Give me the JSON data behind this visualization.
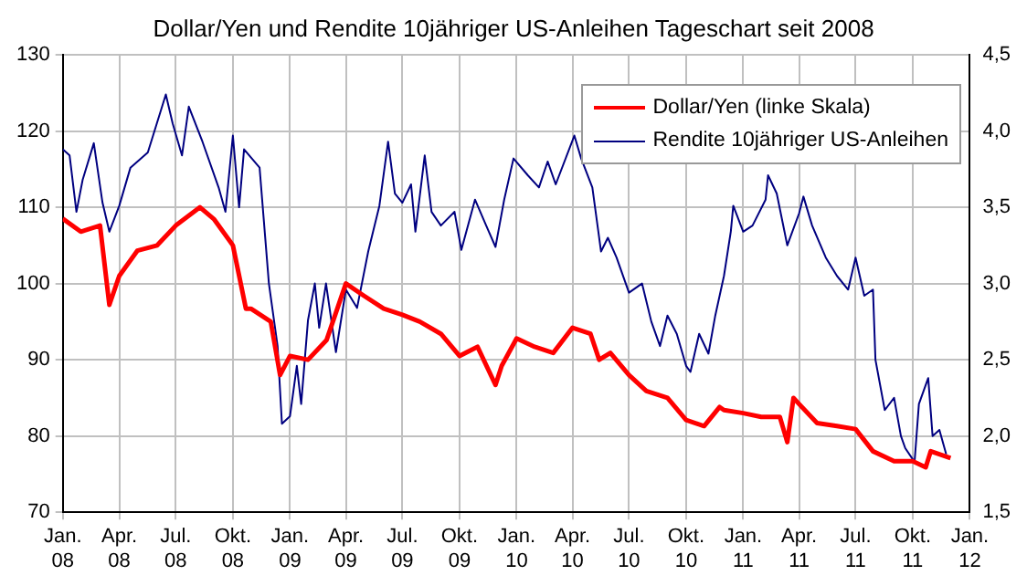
{
  "chart_data": {
    "type": "line",
    "title": "Dollar/Yen und Rendite 10jähriger US-Anleihen Tageschart seit 2008",
    "xlim": [
      "2008-01-01",
      "2012-01-01"
    ],
    "xticks": [
      {
        "value": "2008-01-01",
        "label": "Jan. 08"
      },
      {
        "value": "2008-04-01",
        "label": "Apr. 08"
      },
      {
        "value": "2008-07-01",
        "label": "Jul. 08"
      },
      {
        "value": "2008-10-01",
        "label": "Okt. 08"
      },
      {
        "value": "2009-01-01",
        "label": "Jan. 09"
      },
      {
        "value": "2009-04-01",
        "label": "Apr. 09"
      },
      {
        "value": "2009-07-01",
        "label": "Jul. 09"
      },
      {
        "value": "2009-10-01",
        "label": "Okt. 09"
      },
      {
        "value": "2010-01-01",
        "label": "Jan. 10"
      },
      {
        "value": "2010-04-01",
        "label": "Apr. 10"
      },
      {
        "value": "2010-07-01",
        "label": "Jul. 10"
      },
      {
        "value": "2010-10-01",
        "label": "Okt. 10"
      },
      {
        "value": "2011-01-01",
        "label": "Jan. 11"
      },
      {
        "value": "2011-04-01",
        "label": "Apr. 11"
      },
      {
        "value": "2011-07-01",
        "label": "Jul. 11"
      },
      {
        "value": "2011-10-01",
        "label": "Okt. 11"
      },
      {
        "value": "2012-01-01",
        "label": "Jan. 12"
      }
    ],
    "ylim": [
      70,
      130
    ],
    "yticks": [
      70,
      80,
      90,
      100,
      110,
      120,
      130
    ],
    "y2lim": [
      1.5,
      4.5
    ],
    "y2ticks": [
      {
        "value": 1.5,
        "label": "1,5"
      },
      {
        "value": 2,
        "label": "2,0"
      },
      {
        "value": 2.5,
        "label": "2,5"
      },
      {
        "value": 3,
        "label": "3,0"
      },
      {
        "value": 3.5,
        "label": "3,5"
      },
      {
        "value": 4,
        "label": "4,0"
      },
      {
        "value": 4.5,
        "label": "4,5"
      }
    ],
    "grid": true,
    "legend": "top right",
    "series": [
      {
        "name": "Dollar/Yen (linke Skala)",
        "color": "#ff0000",
        "x": [
          "2008-01-01",
          "2008-01-30",
          "2008-03-01",
          "2008-03-16",
          "2008-04-01",
          "2008-04-30",
          "2008-06-01",
          "2008-07-01",
          "2008-08-09",
          "2008-09-01",
          "2008-10-01",
          "2008-10-22",
          "2008-10-30",
          "2008-12-01",
          "2008-12-16",
          "2009-01-01",
          "2009-01-30",
          "2009-03-01",
          "2009-04-01",
          "2009-04-30",
          "2009-06-01",
          "2009-07-01",
          "2009-07-29",
          "2009-09-01",
          "2009-10-01",
          "2009-10-30",
          "2009-11-28",
          "2009-12-08",
          "2010-01-01",
          "2010-01-30",
          "2010-03-01",
          "2010-04-01",
          "2010-04-30",
          "2010-05-14",
          "2010-06-01",
          "2010-07-01",
          "2010-07-29",
          "2010-09-01",
          "2010-10-01",
          "2010-10-30",
          "2010-11-24",
          "2010-12-01",
          "2011-01-01",
          "2011-01-30",
          "2011-03-01",
          "2011-03-13",
          "2011-03-23",
          "2011-04-01",
          "2011-04-30",
          "2011-06-01",
          "2011-07-01",
          "2011-07-29",
          "2011-09-01",
          "2011-10-01",
          "2011-10-22",
          "2011-10-30",
          "2011-12-01"
        ],
        "values": [
          108.5,
          106.8,
          107.6,
          97.2,
          101,
          104.3,
          105,
          107.6,
          110,
          108.4,
          105,
          96.7,
          96.7,
          95,
          88,
          90.5,
          90,
          92.6,
          100,
          98.4,
          96.7,
          95.9,
          95,
          93.4,
          90.5,
          91.7,
          86.7,
          89.2,
          92.8,
          91.7,
          90.9,
          94.2,
          93.4,
          90,
          90.9,
          88,
          85.9,
          85,
          82.1,
          81.3,
          83.8,
          83.4,
          83,
          82.5,
          82.5,
          79.2,
          85,
          84.2,
          81.7,
          81.3,
          80.9,
          78,
          76.7,
          76.7,
          75.9,
          78,
          77.1
        ]
      },
      {
        "name": "Rendite 10jähriger US-Anleihen",
        "color": "#000080",
        "axis": "y2",
        "x": [
          "2008-01-01",
          "2008-01-12",
          "2008-01-23",
          "2008-02-02",
          "2008-02-20",
          "2008-03-05",
          "2008-03-16",
          "2008-04-01",
          "2008-04-19",
          "2008-05-17",
          "2008-06-15",
          "2008-06-26",
          "2008-07-11",
          "2008-07-22",
          "2008-08-13",
          "2008-09-08",
          "2008-09-19",
          "2008-10-01",
          "2008-10-11",
          "2008-10-19",
          "2008-11-13",
          "2008-11-28",
          "2008-12-12",
          "2008-12-19",
          "2009-01-01",
          "2009-01-12",
          "2009-01-19",
          "2009-01-30",
          "2009-02-10",
          "2009-02-17",
          "2009-02-28",
          "2009-03-16",
          "2009-04-01",
          "2009-04-19",
          "2009-05-07",
          "2009-05-25",
          "2009-06-08",
          "2009-06-19",
          "2009-07-01",
          "2009-07-15",
          "2009-07-22",
          "2009-08-06",
          "2009-08-17",
          "2009-09-01",
          "2009-09-23",
          "2009-10-04",
          "2009-10-26",
          "2009-11-13",
          "2009-11-28",
          "2009-12-12",
          "2009-12-27",
          "2010-01-19",
          "2010-02-06",
          "2010-02-20",
          "2010-03-05",
          "2010-04-04",
          "2010-04-15",
          "2010-05-03",
          "2010-05-17",
          "2010-05-28",
          "2010-06-11",
          "2010-07-01",
          "2010-07-22",
          "2010-08-06",
          "2010-08-20",
          "2010-09-01",
          "2010-09-16",
          "2010-10-01",
          "2010-10-08",
          "2010-10-22",
          "2010-11-06",
          "2010-11-17",
          "2010-12-01",
          "2010-12-12",
          "2010-12-16",
          "2011-01-01",
          "2011-01-16",
          "2011-02-06",
          "2011-02-10",
          "2011-02-24",
          "2011-03-13",
          "2011-04-01",
          "2011-04-08",
          "2011-04-22",
          "2011-05-14",
          "2011-06-01",
          "2011-06-19",
          "2011-07-01",
          "2011-07-15",
          "2011-07-29",
          "2011-08-02",
          "2011-08-17",
          "2011-09-01",
          "2011-09-12",
          "2011-09-19",
          "2011-10-04",
          "2011-10-11",
          "2011-10-26",
          "2011-11-02",
          "2011-11-13",
          "2011-11-24"
        ],
        "values": [
          3.88,
          3.84,
          3.47,
          3.68,
          3.92,
          3.53,
          3.34,
          3.51,
          3.76,
          3.86,
          4.24,
          4.05,
          3.84,
          4.16,
          3.93,
          3.63,
          3.47,
          3.97,
          3.5,
          3.88,
          3.76,
          3,
          2.59,
          2.08,
          2.13,
          2.46,
          2.21,
          2.76,
          3,
          2.71,
          3,
          2.55,
          2.96,
          2.84,
          3.21,
          3.51,
          3.93,
          3.59,
          3.53,
          3.65,
          3.34,
          3.84,
          3.47,
          3.38,
          3.47,
          3.22,
          3.55,
          3.38,
          3.24,
          3.55,
          3.82,
          3.71,
          3.63,
          3.8,
          3.65,
          3.97,
          3.82,
          3.63,
          3.21,
          3.3,
          3.17,
          2.94,
          3,
          2.75,
          2.59,
          2.79,
          2.67,
          2.46,
          2.42,
          2.67,
          2.54,
          2.79,
          3.05,
          3.34,
          3.51,
          3.34,
          3.38,
          3.55,
          3.71,
          3.59,
          3.25,
          3.46,
          3.57,
          3.38,
          3.17,
          3.05,
          2.96,
          3.17,
          2.92,
          2.96,
          2.5,
          2.17,
          2.25,
          2,
          1.92,
          1.83,
          2.21,
          2.38,
          2,
          2.04,
          1.88
        ]
      }
    ]
  }
}
